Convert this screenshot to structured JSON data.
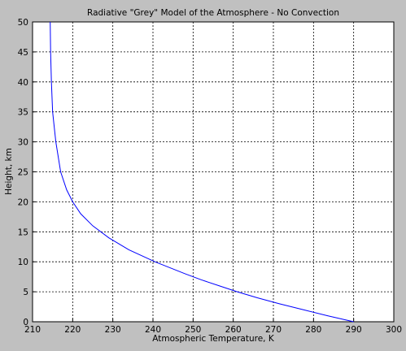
{
  "chart_data": {
    "type": "line",
    "title": "Radiative \"Grey\" Model of the Atmosphere - No Convection",
    "x_label": "Atmospheric Temperature, K",
    "y_label": "Height, km",
    "x": [
      290,
      283.5,
      277.5,
      271.5,
      266,
      261,
      256.5,
      252,
      248,
      240.5,
      234,
      229,
      225,
      222,
      220,
      218.5,
      217,
      215.8,
      215,
      214.7,
      214.5,
      214.4
    ],
    "values": [
      0,
      1,
      2,
      3,
      4,
      5,
      6,
      7,
      8,
      10,
      12,
      14,
      16,
      18,
      20,
      22,
      25,
      30,
      35,
      40,
      45,
      50
    ],
    "color": "#0000ff",
    "xlim": [
      210,
      300
    ],
    "xticks": [
      210,
      220,
      230,
      240,
      250,
      260,
      270,
      280,
      290,
      300
    ],
    "ylim": [
      0,
      50
    ],
    "yticks": [
      0,
      5,
      10,
      15,
      20,
      25,
      30,
      35,
      40,
      45,
      50
    ],
    "grid": true
  }
}
